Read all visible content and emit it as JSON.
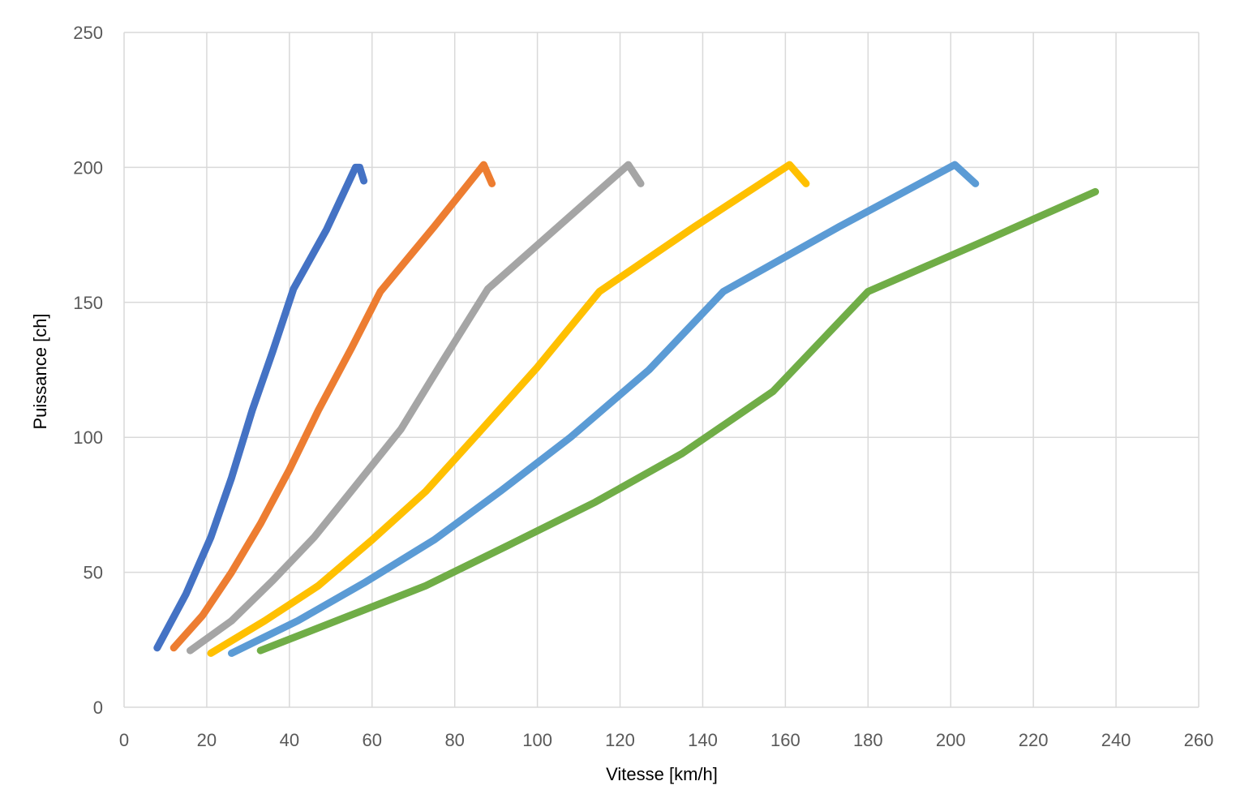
{
  "chart_data": {
    "type": "line",
    "title": "",
    "xlabel": "Vitesse [km/h]",
    "ylabel": "Puissance [ch]",
    "xlim": [
      0,
      260
    ],
    "ylim": [
      0,
      250
    ],
    "x_ticks": [
      0,
      20,
      40,
      60,
      80,
      100,
      120,
      140,
      160,
      180,
      200,
      220,
      240,
      260
    ],
    "y_ticks": [
      0,
      50,
      100,
      150,
      200,
      250
    ],
    "grid": true,
    "legend": "none",
    "series": [
      {
        "color": "#4472C4",
        "points": [
          [
            8,
            22
          ],
          [
            15,
            42
          ],
          [
            21,
            63
          ],
          [
            26,
            85
          ],
          [
            31,
            110
          ],
          [
            36,
            132
          ],
          [
            41,
            155
          ],
          [
            49,
            177
          ],
          [
            56,
            200
          ],
          [
            57,
            200
          ],
          [
            58,
            195
          ]
        ]
      },
      {
        "color": "#ED7D31",
        "points": [
          [
            12,
            22
          ],
          [
            19,
            34
          ],
          [
            26,
            50
          ],
          [
            33,
            68
          ],
          [
            40,
            88
          ],
          [
            47,
            110
          ],
          [
            55,
            133
          ],
          [
            62,
            154
          ],
          [
            75,
            178
          ],
          [
            87,
            201
          ],
          [
            89,
            194
          ]
        ]
      },
      {
        "color": "#A5A5A5",
        "points": [
          [
            16,
            21
          ],
          [
            26,
            32
          ],
          [
            36,
            47
          ],
          [
            46,
            63
          ],
          [
            56,
            82
          ],
          [
            67,
            103
          ],
          [
            77,
            128
          ],
          [
            88,
            155
          ],
          [
            105,
            178
          ],
          [
            122,
            201
          ],
          [
            125,
            194
          ]
        ]
      },
      {
        "color": "#FFC000",
        "points": [
          [
            21,
            20
          ],
          [
            34,
            32
          ],
          [
            47,
            45
          ],
          [
            60,
            62
          ],
          [
            73,
            80
          ],
          [
            86,
            102
          ],
          [
            100,
            126
          ],
          [
            115,
            154
          ],
          [
            138,
            178
          ],
          [
            161,
            201
          ],
          [
            165,
            194
          ]
        ]
      },
      {
        "color": "#5B9BD5",
        "points": [
          [
            26,
            20
          ],
          [
            42,
            32
          ],
          [
            58,
            46
          ],
          [
            75,
            62
          ],
          [
            91,
            80
          ],
          [
            108,
            100
          ],
          [
            127,
            125
          ],
          [
            145,
            154
          ],
          [
            173,
            178
          ],
          [
            201,
            201
          ],
          [
            206,
            194
          ]
        ]
      },
      {
        "color": "#70AD47",
        "points": [
          [
            33,
            21
          ],
          [
            53,
            33
          ],
          [
            73,
            45
          ],
          [
            93,
            60
          ],
          [
            114,
            76
          ],
          [
            135,
            94
          ],
          [
            157,
            117
          ],
          [
            180,
            154
          ],
          [
            207,
            172
          ],
          [
            235,
            191
          ]
        ]
      }
    ]
  }
}
